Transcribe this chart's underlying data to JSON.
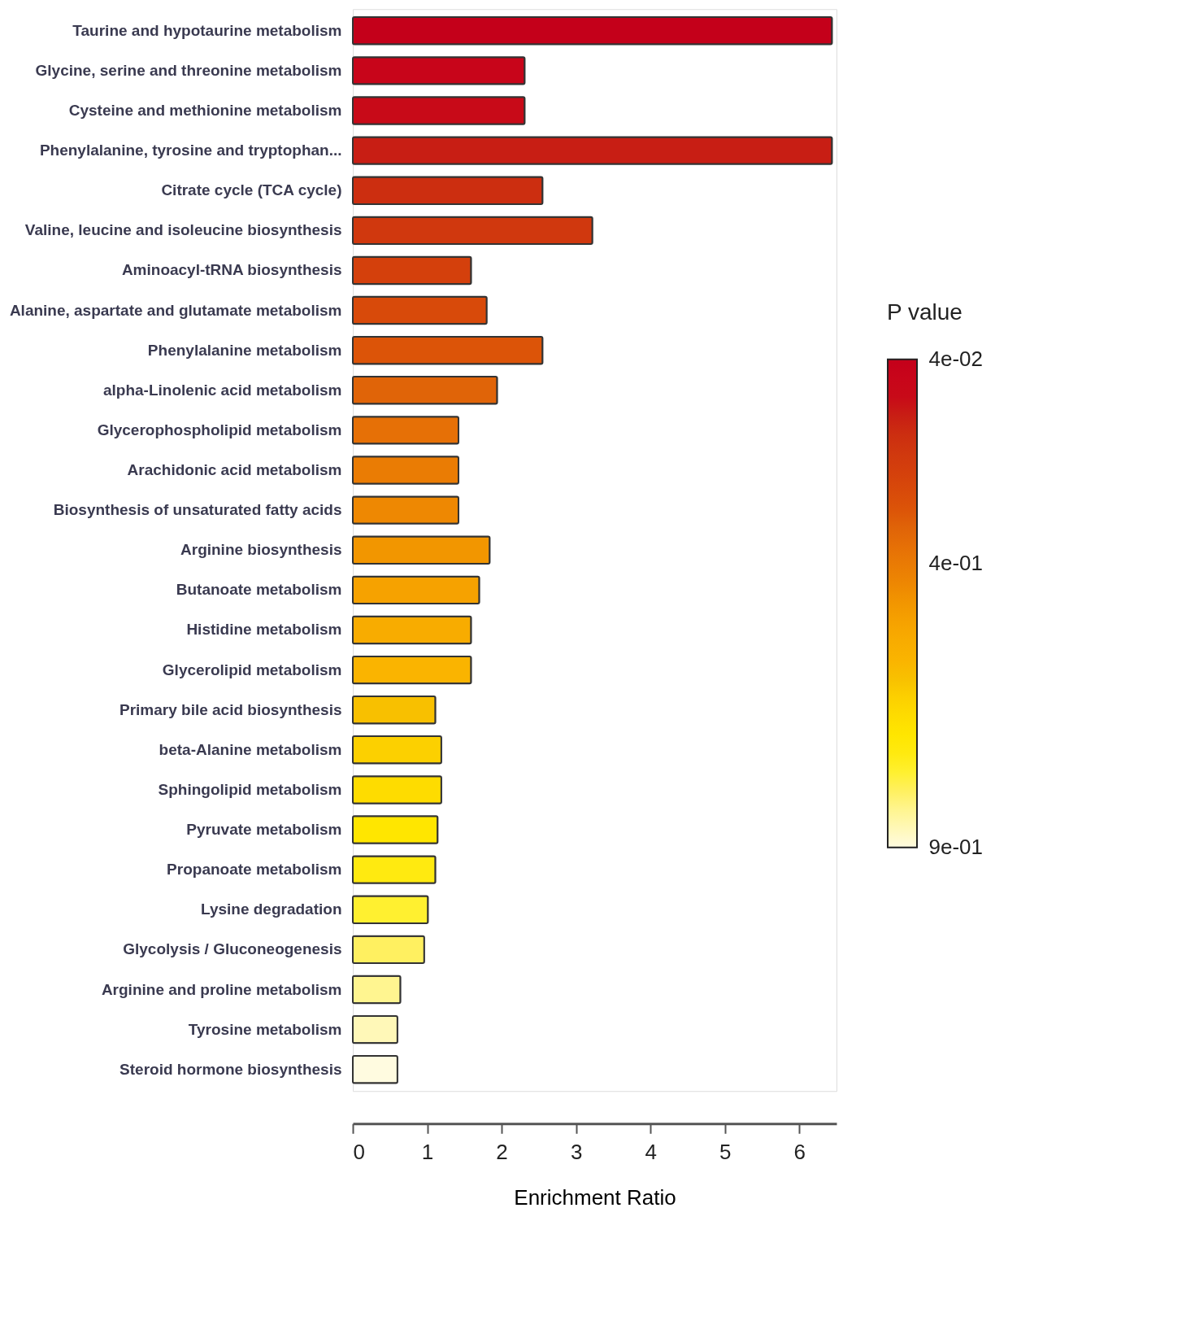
{
  "chart_data": {
    "type": "bar",
    "orientation": "horizontal",
    "xlabel": "Enrichment Ratio",
    "clabel": "P value",
    "categories": [
      "Taurine and hypotaurine metabolism",
      "Glycine, serine and threonine metabolism",
      "Cysteine and methionine metabolism",
      "Phenylalanine, tyrosine and tryptophan...",
      "Citrate cycle (TCA cycle)",
      "Valine, leucine and isoleucine biosynthesis",
      "Aminoacyl-tRNA biosynthesis",
      "Alanine, aspartate and glutamate metabolism",
      "Phenylalanine metabolism",
      "alpha-Linolenic acid metabolism",
      "Glycerophospholipid metabolism",
      "Arachidonic acid metabolism",
      "Biosynthesis of unsaturated fatty acids",
      "Arginine biosynthesis",
      "Butanoate metabolism",
      "Histidine metabolism",
      "Glycerolipid metabolism",
      "Primary bile acid biosynthesis",
      "beta-Alanine metabolism",
      "Sphingolipid metabolism",
      "Pyruvate metabolism",
      "Propanoate metabolism",
      "Lysine degradation",
      "Glycolysis / Gluconeogenesis",
      "Arginine and proline metabolism",
      "Tyrosine metabolism",
      "Steroid hormone biosynthesis"
    ],
    "values": [
      6.44,
      2.31,
      2.31,
      6.44,
      2.55,
      3.22,
      1.59,
      1.8,
      2.55,
      1.94,
      1.42,
      1.42,
      1.42,
      1.84,
      1.7,
      1.59,
      1.59,
      1.11,
      1.19,
      1.19,
      1.14,
      1.11,
      1.01,
      0.96,
      0.64,
      0.6,
      0.6
    ],
    "colors": [
      "#c4001a",
      "#c8051a",
      "#c80a18",
      "#c81e14",
      "#cc2e10",
      "#d0380e",
      "#d4400c",
      "#d84a0a",
      "#dc5408",
      "#e06408",
      "#e67006",
      "#ea7c04",
      "#ee8802",
      "#f29600",
      "#f6a200",
      "#f8ac00",
      "#fab400",
      "#f8c000",
      "#fcd000",
      "#fedc00",
      "#ffe600",
      "#ffea10",
      "#fff030",
      "#fff060",
      "#fff590",
      "#fff8b8",
      "#fffbe0"
    ],
    "xlim": [
      0,
      6.5
    ],
    "xticks": [
      0,
      1,
      2,
      3,
      4,
      5,
      6
    ],
    "grid": false,
    "clim": [
      0.04,
      0.9
    ],
    "cticks": [
      {
        "value": 0.04,
        "label": "4e-02"
      },
      {
        "value": 0.4,
        "label": "4e-01"
      },
      {
        "value": 0.9,
        "label": "9e-01"
      }
    ]
  }
}
